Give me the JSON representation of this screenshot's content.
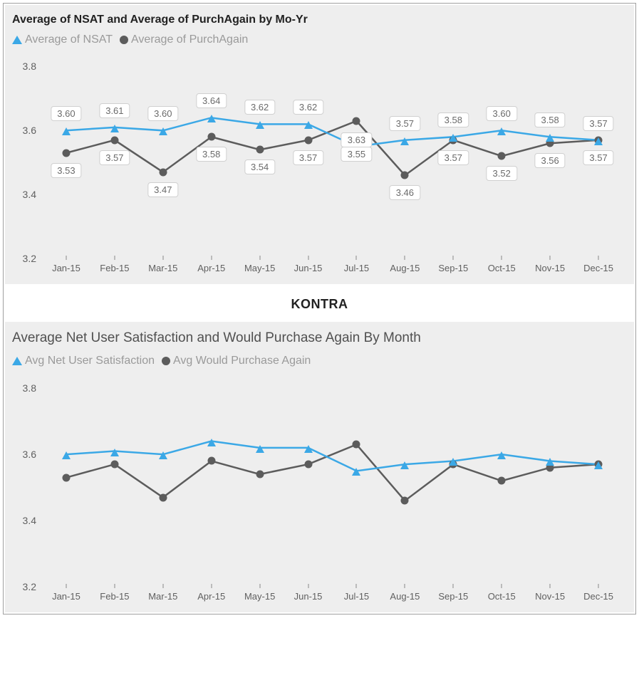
{
  "outer_border_color": "#a0a0a0",
  "panel_bg": "#eeeeee",
  "divider_text": "KONTRA",
  "series_a_color": "#3ba8e6",
  "series_a_marker": "triangle",
  "series_a_line_width": 2.5,
  "series_b_color": "#5c5c5c",
  "series_b_marker": "circle",
  "series_b_line_width": 2.5,
  "chart1": {
    "title": "Average of NSAT and Average of PurchAgain by Mo-Yr",
    "legend_a": "Average of NSAT",
    "legend_b": "Average of PurchAgain",
    "y_min": 3.2,
    "y_max": 3.85,
    "y_ticks": [
      3.2,
      3.4,
      3.6,
      3.8
    ],
    "categories": [
      "Jan-15",
      "Feb-15",
      "Mar-15",
      "Apr-15",
      "May-15",
      "Jun-15",
      "Jul-15",
      "Aug-15",
      "Sep-15",
      "Oct-15",
      "Nov-15",
      "Dec-15"
    ],
    "values_a": [
      3.6,
      3.61,
      3.6,
      3.64,
      3.62,
      3.62,
      3.55,
      3.57,
      3.58,
      3.6,
      3.58,
      3.57
    ],
    "values_b": [
      3.53,
      3.57,
      3.47,
      3.58,
      3.54,
      3.57,
      3.63,
      3.46,
      3.57,
      3.52,
      3.56,
      3.57
    ],
    "show_data_labels": true,
    "label_a_offset": -34,
    "label_b_offset": 14,
    "label_overrides_a": {
      "6": 0
    },
    "label_overrides_b": {
      "6": 16
    }
  },
  "chart2": {
    "title": "Average Net User Satisfaction and Would Purchase Again By Month",
    "legend_a": "Avg Net User Satisfaction",
    "legend_b": "Avg Would Purchase Again",
    "y_min": 3.2,
    "y_max": 3.85,
    "y_ticks": [
      3.2,
      3.4,
      3.6,
      3.8
    ],
    "categories": [
      "Jan-15",
      "Feb-15",
      "Mar-15",
      "Apr-15",
      "May-15",
      "Jun-15",
      "Jul-15",
      "Aug-15",
      "Sep-15",
      "Oct-15",
      "Nov-15",
      "Dec-15"
    ],
    "values_a": [
      3.6,
      3.61,
      3.6,
      3.64,
      3.62,
      3.62,
      3.55,
      3.57,
      3.58,
      3.6,
      3.58,
      3.57
    ],
    "values_b": [
      3.53,
      3.57,
      3.47,
      3.58,
      3.54,
      3.57,
      3.63,
      3.46,
      3.57,
      3.52,
      3.56,
      3.57
    ],
    "show_data_labels": false
  },
  "label_bg": "#ffffff",
  "label_border": "#d0d0d0",
  "axis_text_color": "#606060",
  "fontsize_title_bold": 16,
  "fontsize_title_light": 19,
  "fontsize_legend": 16,
  "fontsize_axis": 14
}
